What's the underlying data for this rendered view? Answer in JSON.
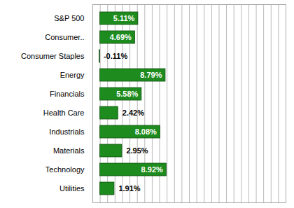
{
  "chart_data": {
    "type": "bar",
    "orientation": "horizontal",
    "categories": [
      "S&P 500",
      "Consumer..",
      "Consumer Staples",
      "Energy",
      "Financials",
      "Health Care",
      "Industrials",
      "Materials",
      "Technology",
      "Utilities"
    ],
    "values": [
      5.11,
      4.69,
      -0.11,
      8.79,
      5.58,
      2.42,
      8.08,
      2.95,
      8.92,
      1.91
    ],
    "value_labels": [
      "5.11%",
      "4.69%",
      "-0.11%",
      "8.79%",
      "5.58%",
      "2.42%",
      "8.08%",
      "2.95%",
      "8.92%",
      "1.91%"
    ],
    "colors": [
      "#1e8b1e",
      "#1e8b1e",
      "#c8c8c8",
      "#1e8b1e",
      "#1e8b1e",
      "#1e8b1e",
      "#1e8b1e",
      "#1e8b1e",
      "#1e8b1e",
      "#1e8b1e"
    ],
    "xlim": [
      -1,
      25
    ],
    "xticks": [
      -1,
      0,
      1,
      2,
      3,
      4,
      5,
      6,
      7,
      8,
      9,
      10,
      11,
      12,
      13,
      14,
      15,
      16,
      17,
      18,
      19,
      20,
      21,
      22,
      23,
      24,
      25
    ],
    "grid": true,
    "data_labels": true,
    "tick_labels": "y"
  }
}
